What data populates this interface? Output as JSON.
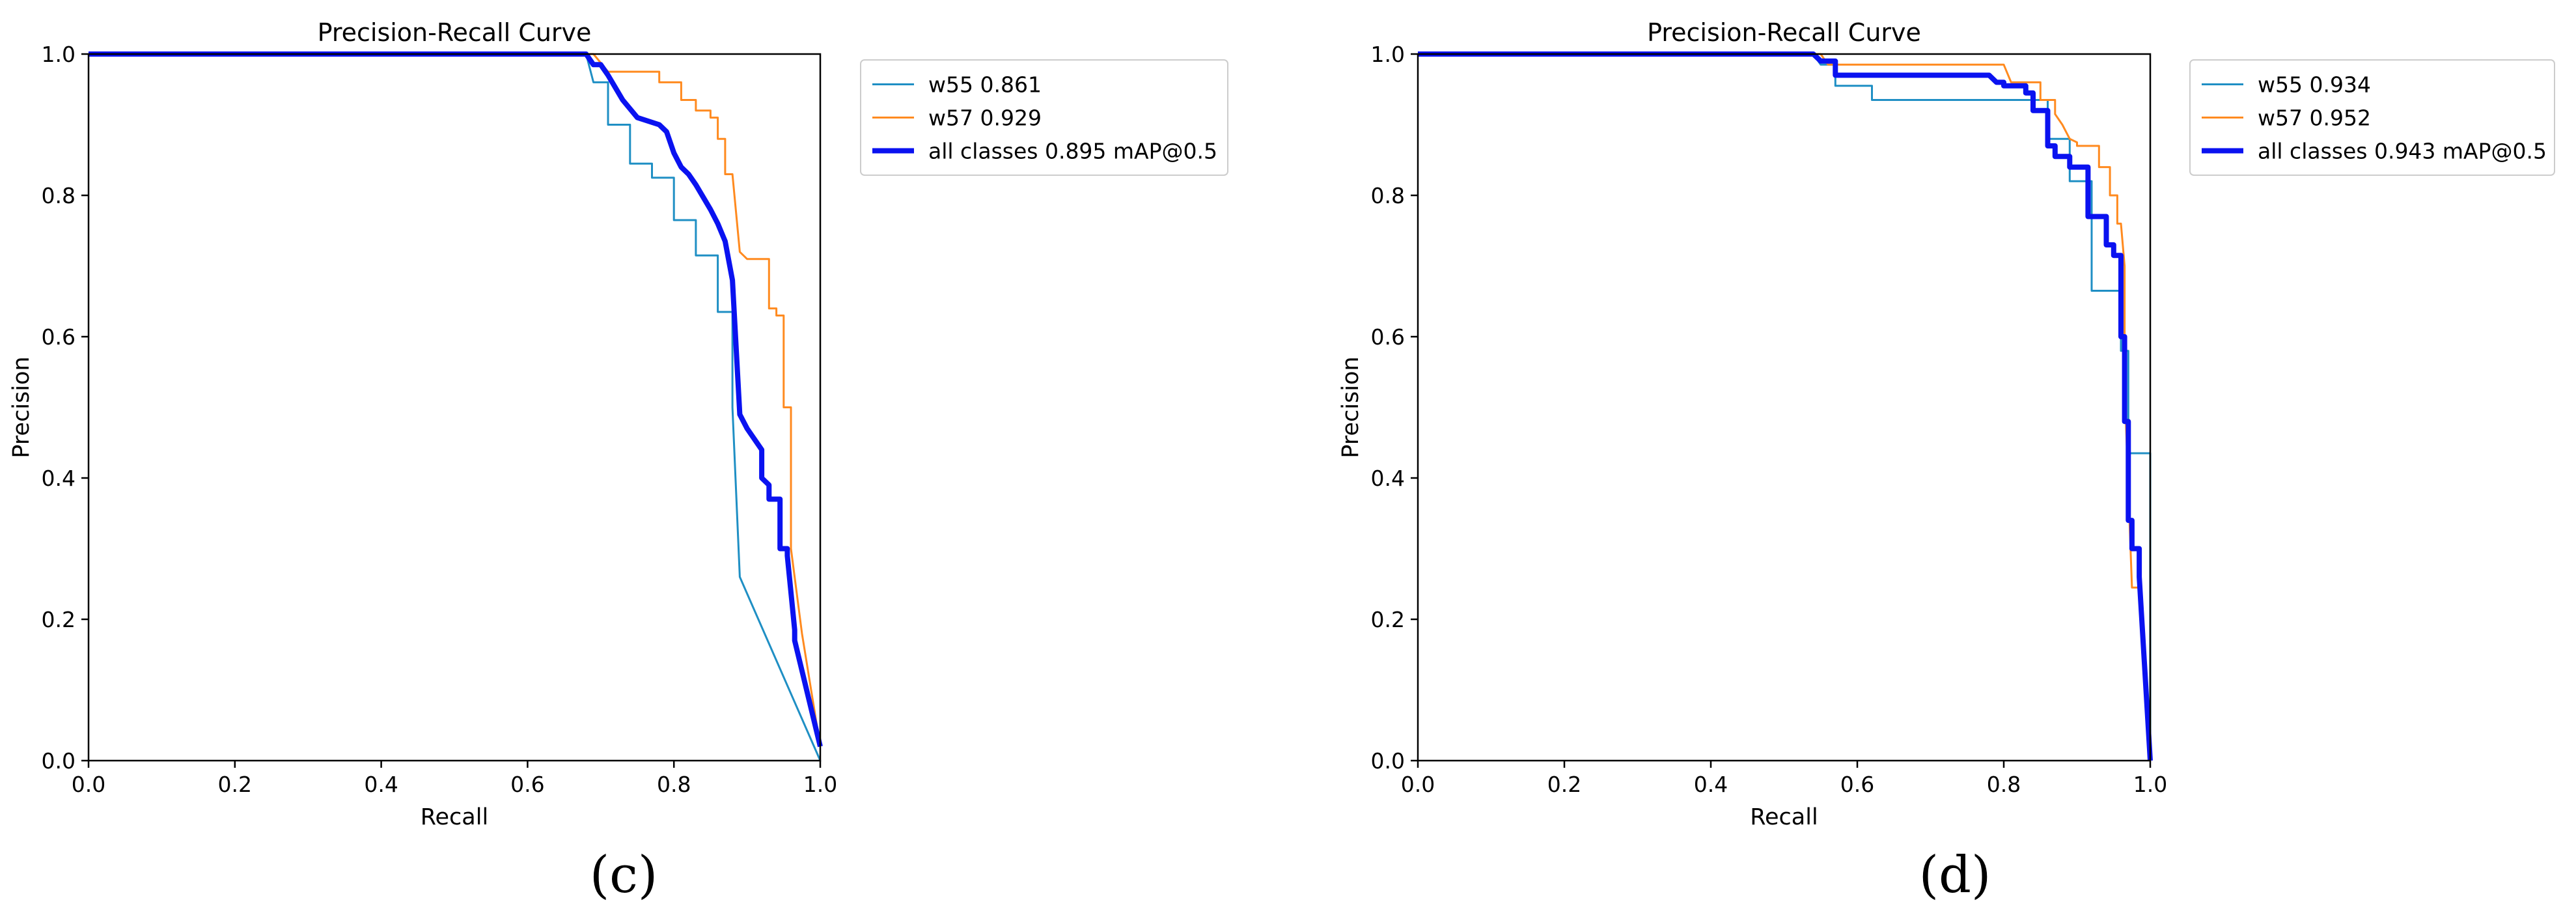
{
  "chart_data": [
    {
      "type": "line",
      "title": "Precision-Recall Curve",
      "xlabel": "Recall",
      "ylabel": "Precision",
      "xlim": [
        0,
        1
      ],
      "ylim": [
        0,
        1
      ],
      "xticks": [
        "0.0",
        "0.2",
        "0.4",
        "0.6",
        "0.8",
        "1.0"
      ],
      "yticks": [
        "0.0",
        "0.2",
        "0.4",
        "0.6",
        "0.8",
        "1.0"
      ],
      "grid": false,
      "legend_position": "outside-right",
      "panel_label": "(c)",
      "series": [
        {
          "name": "w55 0.861",
          "color": "#1f8fc4",
          "width": "thin",
          "x": [
            0,
            0.68,
            0.69,
            0.71,
            0.71,
            0.74,
            0.74,
            0.77,
            0.77,
            0.8,
            0.8,
            0.83,
            0.83,
            0.86,
            0.86,
            0.88,
            0.88,
            0.89,
            1.0
          ],
          "y": [
            1.0,
            1.0,
            0.96,
            0.96,
            0.9,
            0.9,
            0.845,
            0.845,
            0.825,
            0.825,
            0.765,
            0.765,
            0.715,
            0.715,
            0.635,
            0.635,
            0.5,
            0.26,
            0.0
          ]
        },
        {
          "name": "w57 0.929",
          "color": "#ff8a1f",
          "width": "thin",
          "x": [
            0,
            0.69,
            0.71,
            0.78,
            0.78,
            0.81,
            0.81,
            0.83,
            0.83,
            0.85,
            0.85,
            0.86,
            0.86,
            0.87,
            0.87,
            0.88,
            0.89,
            0.9,
            0.93,
            0.93,
            0.94,
            0.94,
            0.95,
            0.95,
            0.96,
            0.96,
            0.975,
            1.0
          ],
          "y": [
            1.0,
            1.0,
            0.975,
            0.975,
            0.96,
            0.96,
            0.935,
            0.935,
            0.92,
            0.92,
            0.91,
            0.91,
            0.88,
            0.88,
            0.83,
            0.83,
            0.72,
            0.71,
            0.71,
            0.64,
            0.64,
            0.63,
            0.63,
            0.5,
            0.5,
            0.3,
            0.18,
            0.02
          ]
        },
        {
          "name": "all classes 0.895 mAP@0.5",
          "color": "#0a12f0",
          "width": "thick",
          "x": [
            0,
            0.68,
            0.69,
            0.7,
            0.71,
            0.71,
            0.73,
            0.73,
            0.75,
            0.75,
            0.78,
            0.78,
            0.79,
            0.79,
            0.8,
            0.8,
            0.81,
            0.81,
            0.82,
            0.82,
            0.83,
            0.83,
            0.85,
            0.85,
            0.86,
            0.86,
            0.87,
            0.87,
            0.88,
            0.88,
            0.89,
            0.9,
            0.92,
            0.92,
            0.93,
            0.93,
            0.945,
            0.945,
            0.955,
            0.955,
            0.965,
            0.965,
            1.0
          ],
          "y": [
            1.0,
            1.0,
            0.985,
            0.985,
            0.97,
            0.97,
            0.935,
            0.935,
            0.91,
            0.91,
            0.9,
            0.9,
            0.89,
            0.89,
            0.86,
            0.86,
            0.84,
            0.84,
            0.83,
            0.83,
            0.815,
            0.815,
            0.78,
            0.78,
            0.76,
            0.76,
            0.735,
            0.735,
            0.68,
            0.68,
            0.49,
            0.47,
            0.44,
            0.4,
            0.39,
            0.37,
            0.37,
            0.3,
            0.3,
            0.29,
            0.185,
            0.17,
            0.02
          ]
        }
      ]
    },
    {
      "type": "line",
      "title": "Precision-Recall Curve",
      "xlabel": "Recall",
      "ylabel": "Precision",
      "xlim": [
        0,
        1
      ],
      "ylim": [
        0,
        1
      ],
      "xticks": [
        "0.0",
        "0.2",
        "0.4",
        "0.6",
        "0.8",
        "1.0"
      ],
      "yticks": [
        "0.0",
        "0.2",
        "0.4",
        "0.6",
        "0.8",
        "1.0"
      ],
      "grid": false,
      "legend_position": "outside-right",
      "panel_label": "(d)",
      "series": [
        {
          "name": "w55 0.934",
          "color": "#1f8fc4",
          "width": "thin",
          "x": [
            0,
            0.54,
            0.55,
            0.57,
            0.57,
            0.62,
            0.62,
            0.86,
            0.86,
            0.89,
            0.89,
            0.92,
            0.92,
            0.96,
            0.96,
            0.97,
            0.97,
            1.0,
            1.0
          ],
          "y": [
            1.0,
            1.0,
            0.985,
            0.985,
            0.955,
            0.955,
            0.935,
            0.935,
            0.88,
            0.88,
            0.82,
            0.82,
            0.665,
            0.665,
            0.58,
            0.58,
            0.435,
            0.435,
            0.0
          ]
        },
        {
          "name": "w57 0.952",
          "color": "#ff8a1f",
          "width": "thin",
          "x": [
            0,
            0.55,
            0.56,
            0.8,
            0.81,
            0.85,
            0.85,
            0.87,
            0.87,
            0.88,
            0.89,
            0.9,
            0.9,
            0.93,
            0.93,
            0.945,
            0.945,
            0.955,
            0.955,
            0.96,
            0.965,
            0.965,
            0.975,
            0.985,
            1.0
          ],
          "y": [
            1.0,
            1.0,
            0.985,
            0.985,
            0.96,
            0.96,
            0.935,
            0.935,
            0.915,
            0.9,
            0.88,
            0.875,
            0.87,
            0.87,
            0.84,
            0.84,
            0.8,
            0.8,
            0.76,
            0.76,
            0.7,
            0.53,
            0.245,
            0.245,
            0.0
          ]
        },
        {
          "name": "all classes 0.943 mAP@0.5",
          "color": "#0a12f0",
          "width": "thick",
          "x": [
            0,
            0.54,
            0.55,
            0.57,
            0.57,
            0.78,
            0.79,
            0.8,
            0.8,
            0.83,
            0.83,
            0.84,
            0.84,
            0.86,
            0.86,
            0.87,
            0.87,
            0.89,
            0.89,
            0.915,
            0.915,
            0.94,
            0.94,
            0.95,
            0.95,
            0.96,
            0.96,
            0.965,
            0.965,
            0.97,
            0.97,
            0.975,
            0.975,
            0.985,
            0.985,
            1.0
          ],
          "y": [
            1.0,
            1.0,
            0.99,
            0.99,
            0.97,
            0.97,
            0.96,
            0.96,
            0.955,
            0.955,
            0.945,
            0.945,
            0.92,
            0.92,
            0.87,
            0.87,
            0.855,
            0.855,
            0.84,
            0.84,
            0.77,
            0.77,
            0.73,
            0.73,
            0.715,
            0.715,
            0.6,
            0.6,
            0.48,
            0.48,
            0.34,
            0.34,
            0.3,
            0.3,
            0.26,
            0.0
          ]
        }
      ]
    }
  ]
}
